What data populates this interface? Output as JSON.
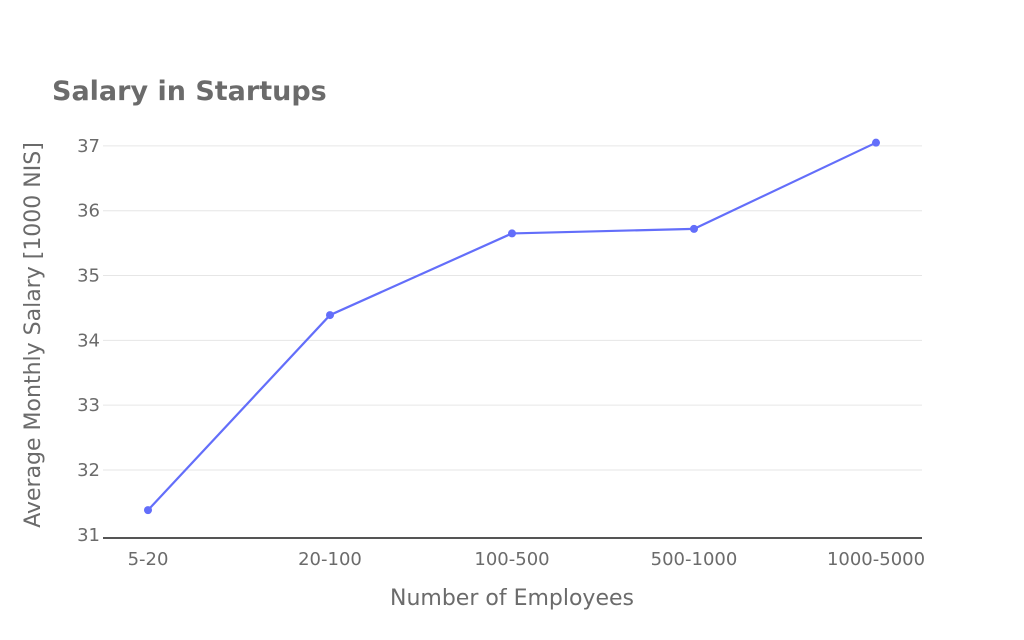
{
  "chart_data": {
    "type": "line",
    "title": "Salary in Startups",
    "xlabel": "Number of Employees",
    "ylabel": "Average Monthly Salary [1000 NIS]",
    "categories": [
      "5-20",
      "20-100",
      "100-500",
      "500-1000",
      "1000-5000"
    ],
    "series": [
      {
        "values": [
          31.38,
          34.39,
          35.65,
          35.72,
          37.05
        ]
      }
    ],
    "ylim": [
      30.95,
      37.4
    ],
    "yticks": [
      31,
      32,
      33,
      34,
      35,
      36,
      37
    ],
    "grid": true,
    "legend": "none",
    "line_color": "#636efa",
    "text_color": "#6b6b6b"
  }
}
